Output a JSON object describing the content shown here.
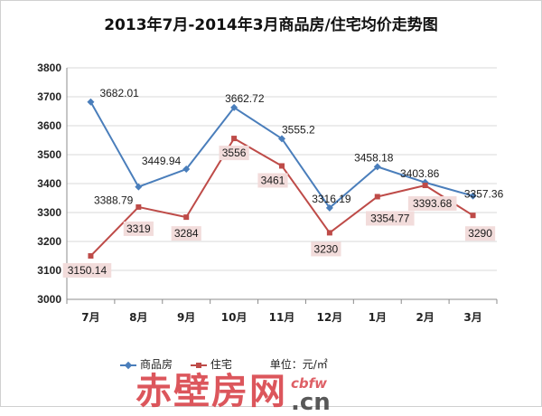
{
  "chart_data": {
    "type": "line",
    "title": "2013年7月-2014年3月商品房/住宅均价走势图",
    "categories": [
      "7月",
      "8月",
      "9月",
      "10月",
      "11月",
      "12月",
      "1月",
      "2月",
      "3月"
    ],
    "ylim": [
      3000,
      3800
    ],
    "yticks": [
      3000,
      3100,
      3200,
      3300,
      3400,
      3500,
      3600,
      3700,
      3800
    ],
    "grid": true,
    "legend_position": "bottom",
    "series": [
      {
        "name": "商品房",
        "color": "#4a7ebb",
        "marker": "diamond",
        "values": [
          3682.01,
          3388.79,
          3449.94,
          3662.72,
          3555.2,
          3316.19,
          3458.18,
          3403.86,
          3357.36
        ],
        "labels": [
          "3682.01",
          "3388.79",
          "3449.94",
          "3662.72",
          "3555.2",
          "3316.19",
          "3458.18",
          "3403.86",
          "3357.36"
        ]
      },
      {
        "name": "住宅",
        "color": "#be4b48",
        "marker": "square",
        "values": [
          3150.14,
          3319,
          3284,
          3556,
          3461,
          3230,
          3354.77,
          3393.68,
          3290
        ],
        "labels": [
          "3150.14",
          "3319",
          "3284",
          "3556",
          "3461",
          "3230",
          "3354.77",
          "3393.68",
          "3290"
        ]
      }
    ],
    "unit_note": "单位：元/㎡"
  },
  "watermark": {
    "main": "赤壁房网",
    "en": "cbfw",
    "cn": ".cn"
  }
}
